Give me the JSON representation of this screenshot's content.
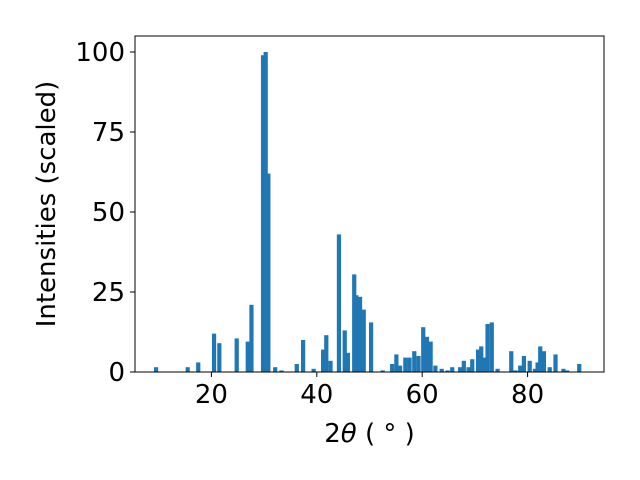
{
  "chart_data": {
    "type": "bar",
    "xlabel_main": "2",
    "xlabel_theta": "θ",
    "xlabel_unit": " ( ° )",
    "ylabel": "Intensities (scaled)",
    "xlim": [
      5.5,
      94.5
    ],
    "ylim": [
      0,
      105
    ],
    "xticks": [
      20,
      40,
      60,
      80
    ],
    "yticks": [
      0,
      25,
      50,
      75,
      100
    ],
    "bar_width": 0.8,
    "bar_color": "#1f77b4",
    "grid": false,
    "x": [
      9.5,
      15.5,
      17.5,
      20.5,
      21.5,
      24.8,
      26.9,
      27.6,
      29.8,
      30.3,
      30.8,
      32.1,
      33.3,
      36.2,
      37.4,
      39.4,
      41.2,
      41.8,
      42.6,
      44.2,
      45.3,
      45.9,
      47.1,
      47.5,
      48.2,
      48.9,
      50.3,
      52.5,
      54.3,
      55.1,
      55.8,
      56.8,
      57.6,
      58.5,
      59.3,
      60.2,
      60.9,
      61.6,
      62.5,
      63.7,
      64.8,
      65.7,
      67.2,
      67.9,
      68.8,
      69.5,
      70.6,
      71.2,
      71.8,
      72.4,
      73.2,
      74.3,
      76.9,
      77.7,
      78.6,
      79.3,
      80.4,
      81.4,
      81.9,
      82.4,
      83.1,
      84.2,
      85.3,
      86.8,
      87.5,
      89.8
    ],
    "values": [
      1.5,
      1.5,
      3,
      12,
      9,
      10.5,
      9.5,
      21,
      99,
      100,
      62,
      1.5,
      0.5,
      2.5,
      10,
      1,
      7,
      11.5,
      3.5,
      43,
      13,
      6,
      30.5,
      24,
      23.5,
      19.5,
      15.5,
      0.5,
      2.5,
      5.5,
      2,
      4.5,
      4.5,
      6.5,
      5,
      14,
      11,
      9.5,
      2,
      1,
      0.5,
      1.5,
      1.5,
      3.5,
      1.5,
      4,
      7,
      8,
      4.5,
      15,
      15.5,
      1,
      6.5,
      0.5,
      2,
      5,
      3.5,
      1,
      3,
      8,
      6.5,
      1.5,
      5.5,
      1,
      0.5,
      2.5
    ]
  }
}
